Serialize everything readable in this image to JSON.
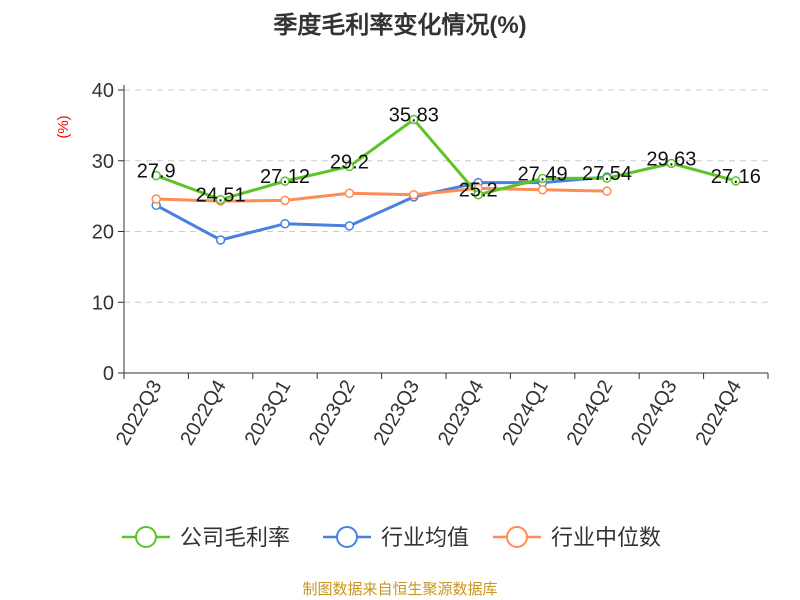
{
  "chart_data": {
    "type": "line",
    "title": "季度毛利率变化情况(%)",
    "ylabel": "(%)",
    "xlabel": "",
    "ylim": [
      0,
      40
    ],
    "yticks": [
      0,
      10,
      20,
      30,
      40
    ],
    "grid": true,
    "legend_position": "bottom",
    "categories": [
      "2022Q3",
      "2022Q4",
      "2023Q1",
      "2023Q2",
      "2023Q3",
      "2023Q4",
      "2024Q1",
      "2024Q2",
      "2024Q3",
      "2024Q4"
    ],
    "series": [
      {
        "name": "公司毛利率",
        "color": "#5cc424",
        "labeled": true,
        "values": [
          27.9,
          24.51,
          27.12,
          29.2,
          35.83,
          25.2,
          27.49,
          27.54,
          29.63,
          27.16
        ]
      },
      {
        "name": "行业均值",
        "color": "#4a80e0",
        "labeled": false,
        "values": [
          23.7,
          18.8,
          21.1,
          20.8,
          24.9,
          26.9,
          26.9,
          27.7,
          null,
          null
        ]
      },
      {
        "name": "行业中位数",
        "color": "#ff8c55",
        "labeled": false,
        "values": [
          24.6,
          24.3,
          24.4,
          25.4,
          25.2,
          26.1,
          25.9,
          25.7,
          null,
          null
        ]
      }
    ]
  },
  "source": "制图数据来自恒生聚源数据库"
}
